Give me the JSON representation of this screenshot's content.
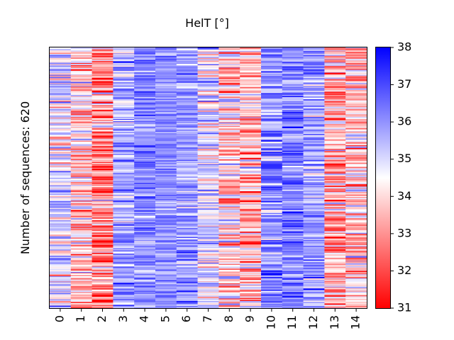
{
  "chart_data": {
    "type": "heatmap",
    "title": "HelT [°]",
    "ylabel": "Number of sequences: 620",
    "xlabel": "",
    "x_ticks": [
      "0",
      "1",
      "2",
      "3",
      "4",
      "5",
      "6",
      "7",
      "8",
      "9",
      "10",
      "11",
      "12",
      "13",
      "14"
    ],
    "n_rows": 620,
    "colorbar": {
      "min": 31,
      "max": 38,
      "ticks": [
        "31",
        "32",
        "33",
        "34",
        "35",
        "36",
        "37",
        "38"
      ],
      "colormap": "bwr",
      "low_color": "#ff0000",
      "mid_color": "#ffffff",
      "high_color": "#0000ff"
    },
    "column_means": [
      34.8,
      33.8,
      32.8,
      35.8,
      36.1,
      36.0,
      35.9,
      35.0,
      33.9,
      33.6,
      36.1,
      36.3,
      35.9,
      33.4,
      33.7
    ],
    "column_spread": [
      1.4,
      1.6,
      1.8,
      1.2,
      0.9,
      0.7,
      1.0,
      1.5,
      1.7,
      1.6,
      1.2,
      1.1,
      1.2,
      1.7,
      1.6
    ]
  }
}
